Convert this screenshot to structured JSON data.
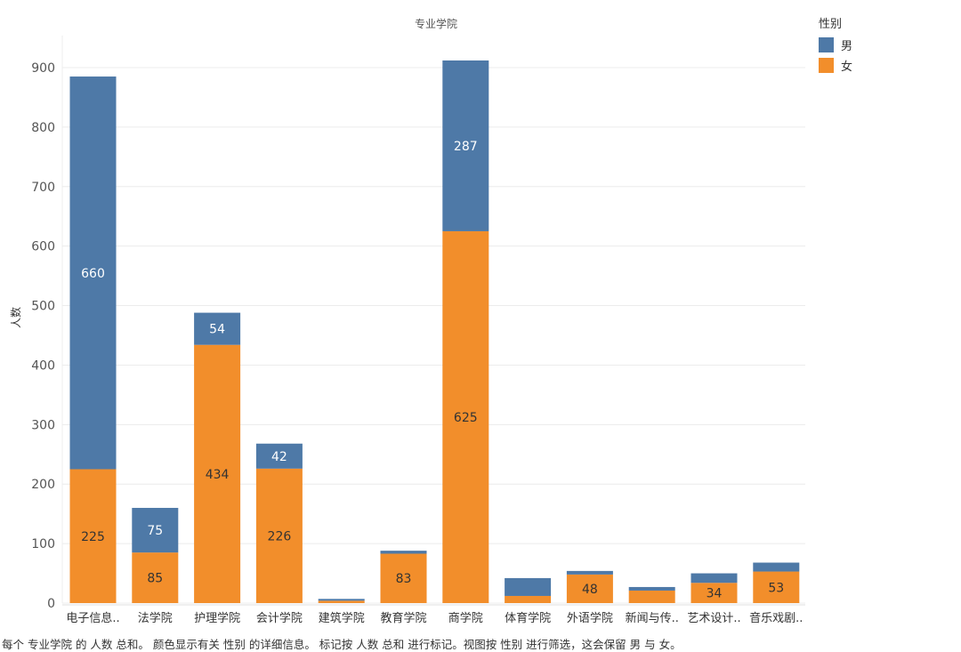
{
  "chart_data": {
    "type": "bar",
    "stacked": true,
    "title": "专业学院",
    "xlabel": "",
    "ylabel": "人数",
    "ylim": [
      0,
      950
    ],
    "yticks": [
      0,
      100,
      200,
      300,
      400,
      500,
      600,
      700,
      800,
      900
    ],
    "grid": true,
    "categories": [
      "电子信息..",
      "法学院",
      "护理学院",
      "会计学院",
      "建筑学院",
      "教育学院",
      "商学院",
      "体育学院",
      "外语学院",
      "新闻与传..",
      "艺术设计..",
      "音乐戏剧.."
    ],
    "series": [
      {
        "name": "女",
        "color": "#f28e2b",
        "values": [
          225,
          85,
          434,
          226,
          4,
          83,
          625,
          12,
          48,
          21,
          34,
          53
        ]
      },
      {
        "name": "男",
        "color": "#4e79a7",
        "values": [
          660,
          75,
          54,
          42,
          3,
          5,
          287,
          30,
          6,
          6,
          16,
          15
        ]
      }
    ],
    "data_labels": {
      "男": [
        "660",
        "75",
        "54",
        "42",
        "",
        "",
        "287",
        "",
        "",
        "",
        "",
        ""
      ],
      "女": [
        "225",
        "85",
        "434",
        "226",
        "",
        "83",
        "625",
        "",
        "48",
        "",
        "34",
        "53"
      ]
    }
  },
  "legend": {
    "title": "性别",
    "items": [
      {
        "label": "男",
        "color": "#4e79a7"
      },
      {
        "label": "女",
        "color": "#f28e2b"
      }
    ]
  },
  "caption": "每个 专业学院 的 人数 总和。 颜色显示有关 性别 的详细信息。 标记按 人数 总和 进行标记。视图按 性别 进行筛选，这会保留 男 与 女。"
}
